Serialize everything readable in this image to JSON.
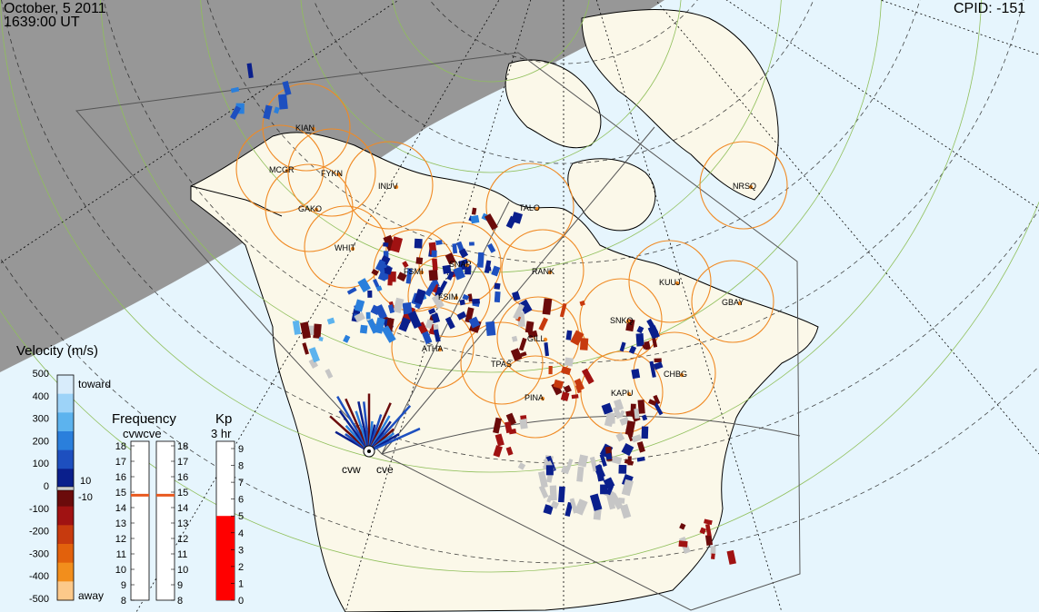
{
  "header": {
    "date": "October, 5 2011",
    "time": "1639:00 UT",
    "cpid": "CPID:  -151"
  },
  "velocity_legend": {
    "title": "Velocity (m/s)",
    "ticks": [
      "500",
      "400",
      "300",
      "200",
      "100",
      "0",
      "-100",
      "-200",
      "-300",
      "-400",
      "-500"
    ],
    "toward_label": "toward",
    "away_label": "away",
    "threshold_pos": "10",
    "threshold_neg": "-10",
    "colors": [
      "#d8ecfb",
      "#9dd3f8",
      "#5cb3ee",
      "#2a7fdc",
      "#1d4fbf",
      "#0a1f8c",
      "#6b0b0b",
      "#a01212",
      "#c73a0e",
      "#e2610c",
      "#f28e1c",
      "#fcc98a"
    ]
  },
  "frequency_legend": {
    "title": "Frequency",
    "subtitle": "cvwcve",
    "left_ticks": [
      "18",
      "17",
      "16",
      "15",
      "14",
      "13",
      "12",
      "11",
      "10",
      "9",
      "8"
    ],
    "right_ticks": [
      "18",
      "17",
      "16",
      "15",
      "14",
      "13",
      "12",
      "11",
      "10",
      "9",
      "8"
    ],
    "cvw_value_mhz": 14.8,
    "cve_value_mhz": 14.8
  },
  "kp_legend": {
    "title": "Kp",
    "subtitle": "3 hr",
    "ticks": [
      "9",
      "8",
      "7",
      "6",
      "5",
      "4",
      "3",
      "2",
      "1",
      "0"
    ],
    "value": 5
  },
  "radar_labels": {
    "cvw": "cvw",
    "cve": "cve"
  },
  "stations": [
    {
      "code": "KIAN"
    },
    {
      "code": "MCGR"
    },
    {
      "code": "FYKN"
    },
    {
      "code": "GAKO"
    },
    {
      "code": "INUV"
    },
    {
      "code": "WHIT"
    },
    {
      "code": "TALO"
    },
    {
      "code": "NRSQ"
    },
    {
      "code": "SNAP"
    },
    {
      "code": "FSMI"
    },
    {
      "code": "FSIM"
    },
    {
      "code": "RANK"
    },
    {
      "code": "KUUJ"
    },
    {
      "code": "GBAY"
    },
    {
      "code": "SNKQ"
    },
    {
      "code": "ATHA"
    },
    {
      "code": "GILL"
    },
    {
      "code": "TPAS"
    },
    {
      "code": "PINA"
    },
    {
      "code": "KAPU"
    },
    {
      "code": "CHBG"
    }
  ],
  "map_colors": {
    "night": "#979797",
    "ocean": "#e6f5fd",
    "land": "#fbf8e9",
    "orange": "#f08a24",
    "scatter_gray": "#c6c6c6"
  }
}
